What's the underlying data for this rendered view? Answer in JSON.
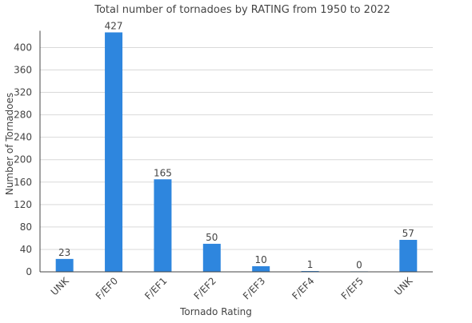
{
  "chart_data": {
    "type": "bar",
    "title": "Total number of tornadoes by RATING from 1950 to 2022",
    "xlabel": "Tornado Rating",
    "ylabel": "Number of Tornadoes",
    "categories": [
      "UNK",
      "F/EF0",
      "F/EF1",
      "F/EF2",
      "F/EF3",
      "F/EF4",
      "F/EF5",
      "UNK"
    ],
    "values": [
      23,
      427,
      165,
      50,
      10,
      1,
      0,
      57
    ],
    "ylim": [
      0,
      427
    ],
    "yticks": [
      0,
      40,
      80,
      120,
      160,
      200,
      240,
      280,
      320,
      360,
      400
    ],
    "grid": true,
    "legend": "none",
    "bar_color": "#2e86de"
  }
}
